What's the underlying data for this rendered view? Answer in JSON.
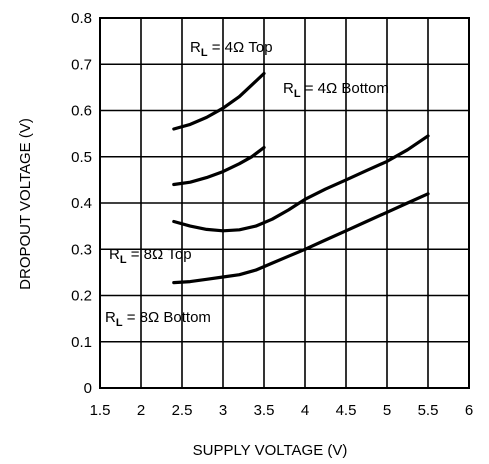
{
  "chart_data": {
    "type": "line",
    "xlabel": "SUPPLY VOLTAGE (V)",
    "ylabel": "DROPOUT VOLTAGE (V)",
    "xlim": [
      1.5,
      6
    ],
    "ylim": [
      0,
      0.8
    ],
    "grid": true,
    "x_ticks": [
      "1.5",
      "2",
      "2.5",
      "3",
      "3.5",
      "4",
      "4.5",
      "5",
      "5.5",
      "6"
    ],
    "y_ticks": [
      "0",
      "0.1",
      "0.2",
      "0.3",
      "0.4",
      "0.5",
      "0.6",
      "0.7",
      "0.8"
    ],
    "series": [
      {
        "name": "R_L = 4Ω Top",
        "label_main": "R",
        "label_sub": "L",
        "label_rest": " = 4Ω Top",
        "x": [
          2.4,
          2.6,
          2.8,
          3.0,
          3.2,
          3.35,
          3.5
        ],
        "y": [
          0.56,
          0.57,
          0.585,
          0.605,
          0.63,
          0.655,
          0.68
        ]
      },
      {
        "name": "R_L = 4Ω Bottom",
        "label_main": "R",
        "label_sub": "L",
        "label_rest": " = 4Ω Bottom",
        "x": [
          2.4,
          2.6,
          2.8,
          3.0,
          3.2,
          3.35,
          3.5
        ],
        "y": [
          0.44,
          0.445,
          0.455,
          0.468,
          0.485,
          0.5,
          0.52
        ]
      },
      {
        "name": "R_L = 8Ω Top",
        "label_main": "R",
        "label_sub": "L",
        "label_rest": " = 8Ω Top",
        "x": [
          2.4,
          2.6,
          2.8,
          3.0,
          3.2,
          3.4,
          3.6,
          3.8,
          4.0,
          4.25,
          4.5,
          4.75,
          5.0,
          5.25,
          5.5
        ],
        "y": [
          0.36,
          0.35,
          0.343,
          0.34,
          0.342,
          0.35,
          0.365,
          0.385,
          0.408,
          0.43,
          0.45,
          0.47,
          0.49,
          0.515,
          0.545
        ]
      },
      {
        "name": "R_L = 8Ω Bottom",
        "label_main": "R",
        "label_sub": "L",
        "label_rest": " = 8Ω Bottom",
        "x": [
          2.4,
          2.6,
          2.8,
          3.0,
          3.2,
          3.4,
          3.6,
          3.8,
          4.0,
          4.25,
          4.5,
          4.75,
          5.0,
          5.25,
          5.5
        ],
        "y": [
          0.228,
          0.23,
          0.235,
          0.24,
          0.245,
          0.255,
          0.27,
          0.285,
          0.3,
          0.32,
          0.34,
          0.36,
          0.38,
          0.4,
          0.42
        ]
      }
    ]
  }
}
